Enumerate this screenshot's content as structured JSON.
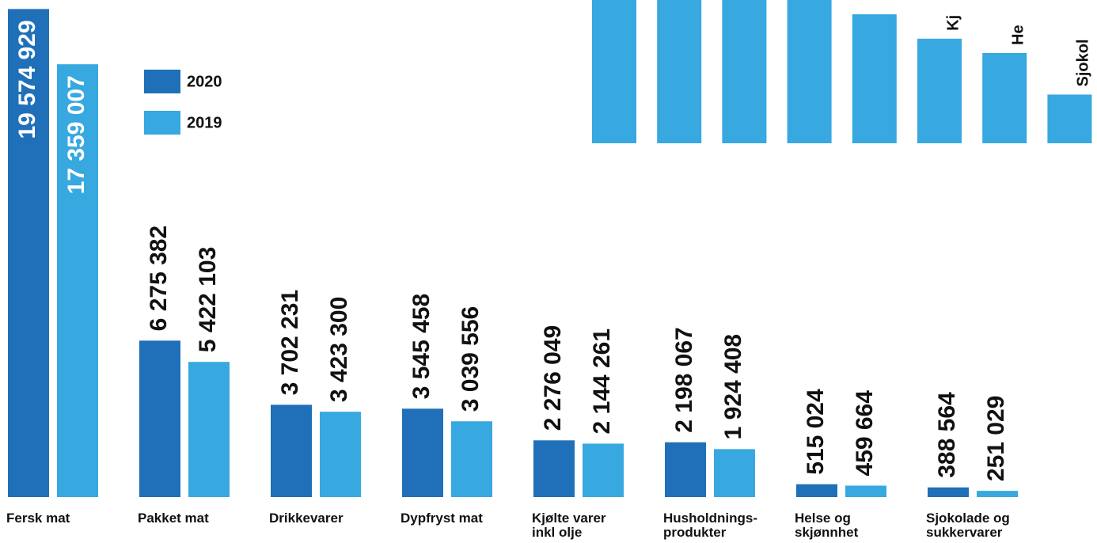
{
  "chart_data": [
    {
      "type": "bar",
      "categories": [
        "Fersk mat",
        "Pakket mat",
        "Drikkevarer",
        "Dypfryst mat",
        "Kjølte varer\ninkl olje",
        "Husholdnings-\nprodukter",
        "Helse og\nskjønnhet",
        "Sjokolade og\nsukkervarer"
      ],
      "series": [
        {
          "name": "2020",
          "color": "#1f70b8",
          "values": [
            19574929,
            6275382,
            3702231,
            3545458,
            2276049,
            2198067,
            515024,
            388564
          ],
          "value_labels": [
            "19 574 929",
            "6 275 382",
            "3 702 231",
            "3 545 458",
            "2 276 049",
            "2 198 067",
            "515 024",
            "388 564"
          ]
        },
        {
          "name": "2019",
          "color": "#37a8e0",
          "values": [
            17359007,
            5422103,
            3423300,
            3039556,
            2144261,
            1924408,
            459664,
            251029
          ],
          "value_labels": [
            "17 359 007",
            "5 422 103",
            "3 423 300",
            "3 039 556",
            "2 144 261",
            "1 924 408",
            "459 664",
            "251 029"
          ]
        }
      ],
      "ylim": [
        0,
        20000000
      ],
      "legend": "upper left"
    },
    {
      "type": "bar",
      "categories": [
        null,
        null,
        null,
        null,
        null,
        "Kj",
        "He",
        "Sjokol"
      ],
      "values": [
        100,
        100,
        100,
        100,
        90,
        73,
        63,
        34
      ],
      "color": "#37a8e0",
      "ylim": [
        0,
        100
      ]
    }
  ]
}
